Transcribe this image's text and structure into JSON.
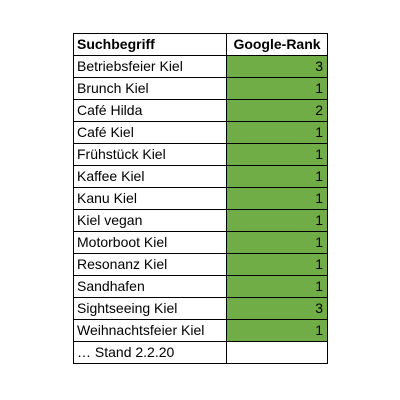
{
  "table": {
    "headers": {
      "term": "Suchbegriff",
      "rank": "Google-Rank"
    },
    "rows": [
      {
        "term": "Betriebsfeier Kiel",
        "rank": "3"
      },
      {
        "term": "Brunch Kiel",
        "rank": "1"
      },
      {
        "term": "Café Hilda",
        "rank": "2"
      },
      {
        "term": "Café Kiel",
        "rank": "1"
      },
      {
        "term": "Frühstück Kiel",
        "rank": "1"
      },
      {
        "term": "Kaffee Kiel",
        "rank": "1"
      },
      {
        "term": "Kanu Kiel",
        "rank": "1"
      },
      {
        "term": "Kiel vegan",
        "rank": "1"
      },
      {
        "term": "Motorboot Kiel",
        "rank": "1"
      },
      {
        "term": "Resonanz Kiel",
        "rank": "1"
      },
      {
        "term": "Sandhafen",
        "rank": "1"
      },
      {
        "term": "Sightseeing Kiel",
        "rank": "3"
      },
      {
        "term": "Weihnachtsfeier Kiel",
        "rank": "1"
      }
    ],
    "footer": {
      "term": "… Stand 2.2.20",
      "rank": ""
    },
    "rank_fill_color": "#70ad47"
  }
}
